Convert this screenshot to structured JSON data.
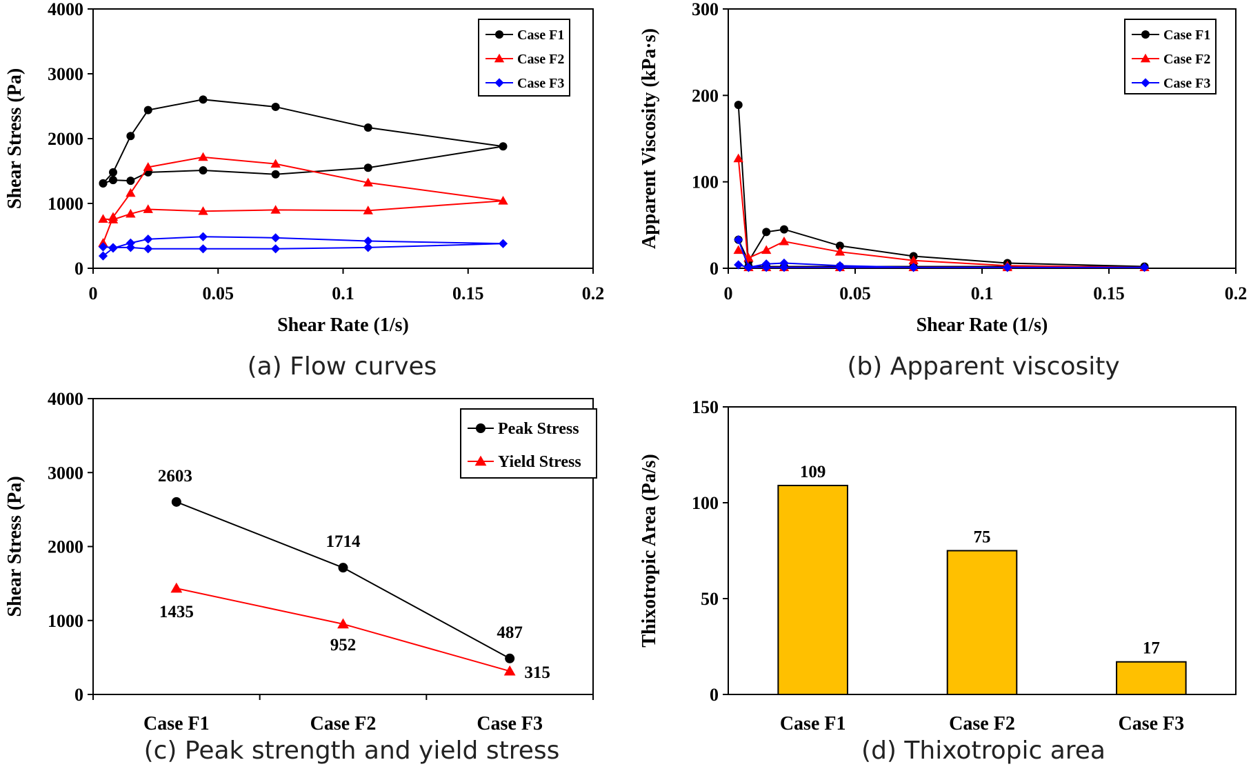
{
  "chart_data": [
    {
      "type": "line",
      "caption": "(a) Flow curves",
      "xlabel": "Shear Rate (1/s)",
      "ylabel": "Shear Stress (Pa)",
      "xlim": [
        0,
        0.2
      ],
      "ylim": [
        0,
        4000
      ],
      "xticks": [
        0,
        0.05,
        0.1,
        0.15,
        0.2
      ],
      "xtick_labels": [
        "0",
        "0.05",
        "0.1",
        "0.15",
        "0.2"
      ],
      "yticks": [
        0,
        1000,
        2000,
        3000,
        4000
      ],
      "ytick_labels": [
        "0",
        "1000",
        "2000",
        "3000",
        "4000"
      ],
      "grid": false,
      "legend_position": "top-right",
      "series": [
        {
          "name": "Case F1",
          "color": "#000000",
          "marker": "circle",
          "x": [
            0.004,
            0.008,
            0.015,
            0.022,
            0.044,
            0.073,
            0.11,
            0.164,
            0.11,
            0.073,
            0.044,
            0.022,
            0.015,
            0.008,
            0.004
          ],
          "y": [
            1310,
            1480,
            2040,
            2440,
            2603,
            2490,
            2170,
            1880,
            1550,
            1450,
            1510,
            1480,
            1350,
            1360,
            1310
          ]
        },
        {
          "name": "Case F2",
          "color": "#ff0000",
          "marker": "triangle",
          "x": [
            0.004,
            0.008,
            0.015,
            0.022,
            0.044,
            0.073,
            0.11,
            0.164,
            0.11,
            0.073,
            0.044,
            0.022,
            0.015,
            0.008,
            0.004
          ],
          "y": [
            390,
            790,
            1160,
            1560,
            1714,
            1610,
            1320,
            1040,
            890,
            900,
            880,
            910,
            840,
            750,
            760
          ]
        },
        {
          "name": "Case F3",
          "color": "#0000ff",
          "marker": "diamond",
          "x": [
            0.004,
            0.008,
            0.015,
            0.022,
            0.044,
            0.073,
            0.11,
            0.164,
            0.11,
            0.073,
            0.044,
            0.022,
            0.015,
            0.008,
            0.004
          ],
          "y": [
            190,
            310,
            390,
            450,
            487,
            470,
            420,
            380,
            320,
            300,
            300,
            300,
            320,
            320,
            330
          ]
        }
      ]
    },
    {
      "type": "line",
      "caption": "(b) Apparent viscosity",
      "xlabel": "Shear Rate (1/s)",
      "ylabel": "Apparent Viscosity (kPa·s)",
      "xlim": [
        0,
        0.2
      ],
      "ylim": [
        0,
        300
      ],
      "xticks": [
        0,
        0.05,
        0.1,
        0.15,
        0.2
      ],
      "xtick_labels": [
        "0",
        "0.05",
        "0.1",
        "0.15",
        "0.2"
      ],
      "yticks": [
        0,
        100,
        200,
        300
      ],
      "ytick_labels": [
        "0",
        "100",
        "200",
        "300"
      ],
      "grid": false,
      "legend_position": "top-right",
      "series": [
        {
          "name": "Case F1",
          "color": "#000000",
          "marker": "circle",
          "x": [
            0.004,
            0.008,
            0.015,
            0.022,
            0.044,
            0.073,
            0.11,
            0.164,
            0.11,
            0.073,
            0.044,
            0.022,
            0.015,
            0.008,
            0.004
          ],
          "y": [
            33,
            8,
            42,
            45,
            26,
            14,
            6,
            2,
            2,
            2,
            2,
            2,
            2,
            2,
            189
          ]
        },
        {
          "name": "Case F2",
          "color": "#ff0000",
          "marker": "triangle",
          "x": [
            0.004,
            0.008,
            0.015,
            0.022,
            0.044,
            0.073,
            0.11,
            0.164,
            0.11,
            0.073,
            0.044,
            0.022,
            0.015,
            0.008,
            0.004
          ],
          "y": [
            21,
            12,
            21,
            31,
            19,
            9,
            3,
            1,
            1,
            1,
            1,
            1,
            1,
            1,
            127
          ]
        },
        {
          "name": "Case F3",
          "color": "#0000ff",
          "marker": "diamond",
          "x": [
            0.004,
            0.008,
            0.015,
            0.022,
            0.044,
            0.073,
            0.11,
            0.164,
            0.11,
            0.073,
            0.044,
            0.022,
            0.015,
            0.008,
            0.004
          ],
          "y": [
            33,
            1,
            5,
            6,
            3,
            1,
            1,
            1,
            1,
            1,
            1,
            1,
            1,
            1,
            4
          ]
        }
      ]
    },
    {
      "type": "line",
      "caption": "(c) Peak strength and yield stress",
      "xlabel": "",
      "ylabel": "Shear Stress (Pa)",
      "categories": [
        "Case F1",
        "Case F2",
        "Case F3"
      ],
      "ylim": [
        0,
        4000
      ],
      "yticks": [
        0,
        1000,
        2000,
        3000,
        4000
      ],
      "ytick_labels": [
        "0",
        "1000",
        "2000",
        "3000",
        "4000"
      ],
      "grid": false,
      "legend_position": "top-right",
      "series": [
        {
          "name": "Peak Stress",
          "color": "#000000",
          "marker": "circle",
          "values": [
            2603,
            1714,
            487
          ],
          "labels": [
            "2603",
            "1714",
            "487"
          ]
        },
        {
          "name": "Yield Stress",
          "color": "#ff0000",
          "marker": "triangle",
          "values": [
            1435,
            952,
            315
          ],
          "labels": [
            "1435",
            "952",
            "315"
          ]
        }
      ]
    },
    {
      "type": "bar",
      "caption": "(d) Thixotropic area",
      "xlabel": "",
      "ylabel": "Thixotropic Area (Pa/s)",
      "categories": [
        "Case F1",
        "Case F2",
        "Case F3"
      ],
      "values": [
        109,
        75,
        17
      ],
      "labels": [
        "109",
        "75",
        "17"
      ],
      "bar_color": "#ffc000",
      "ylim": [
        0,
        150
      ],
      "yticks": [
        0,
        50,
        100,
        150
      ],
      "ytick_labels": [
        "0",
        "50",
        "100",
        "150"
      ],
      "grid": false
    }
  ]
}
